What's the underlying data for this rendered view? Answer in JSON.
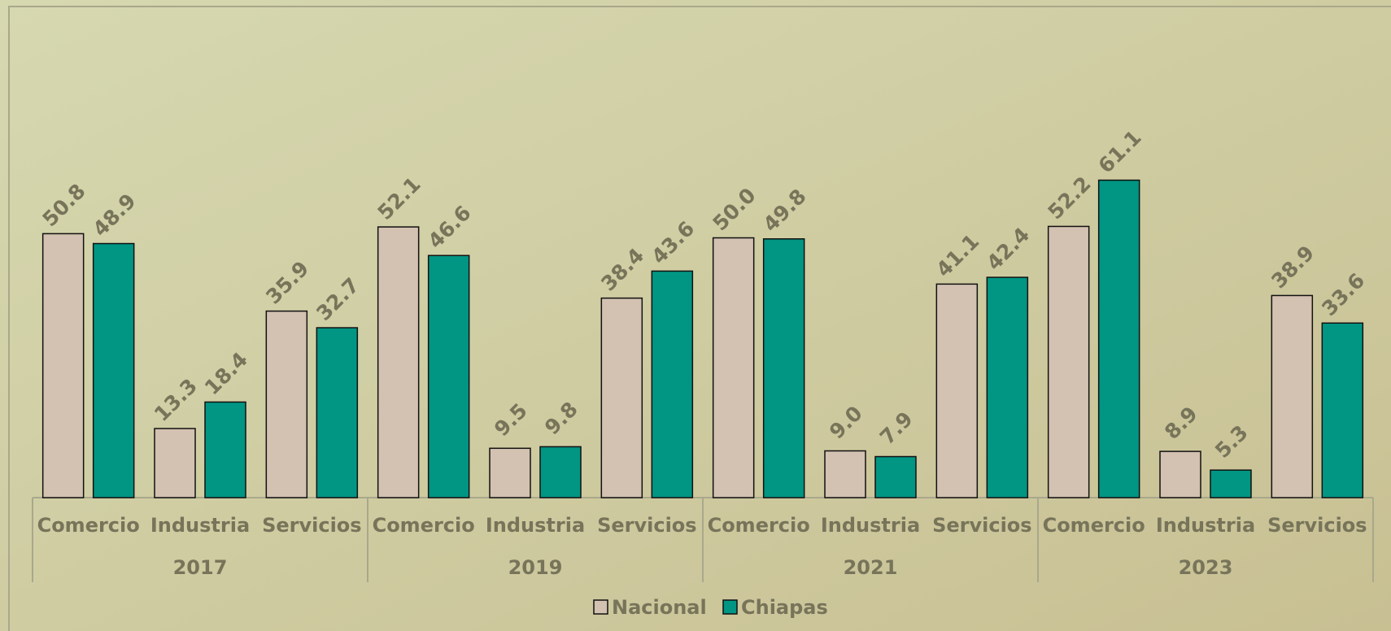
{
  "chart_data": {
    "type": "bar",
    "groups": [
      "2017",
      "2019",
      "2021",
      "2023"
    ],
    "categories": [
      "Comercio",
      "Industria",
      "Servicios",
      "Comercio",
      "Industria",
      "Servicios",
      "Comercio",
      "Industria",
      "Servicios",
      "Comercio",
      "Industria",
      "Servicios"
    ],
    "series": [
      {
        "name": "Nacional",
        "color": "#d3c1b1",
        "values": [
          50.8,
          13.3,
          35.9,
          52.1,
          9.5,
          38.4,
          50.0,
          9.0,
          41.1,
          52.2,
          8.9,
          38.9
        ],
        "value_labels": [
          "50.8",
          "13.3",
          "35.9",
          "52.1",
          "9.5",
          "38.4",
          "50.0",
          "9.0",
          "41.1",
          "52.2",
          "8.9",
          "38.9"
        ]
      },
      {
        "name": "Chiapas",
        "color": "#009683",
        "values": [
          48.9,
          18.4,
          32.7,
          46.6,
          9.8,
          43.6,
          49.8,
          7.9,
          42.4,
          61.1,
          5.3,
          33.6
        ],
        "value_labels": [
          "48.9",
          "18.4",
          "32.7",
          "46.6",
          "9.8",
          "43.6",
          "49.8",
          "7.9",
          "42.4",
          "61.1",
          "5.3",
          "33.6"
        ]
      }
    ],
    "legend": "bottom"
  }
}
